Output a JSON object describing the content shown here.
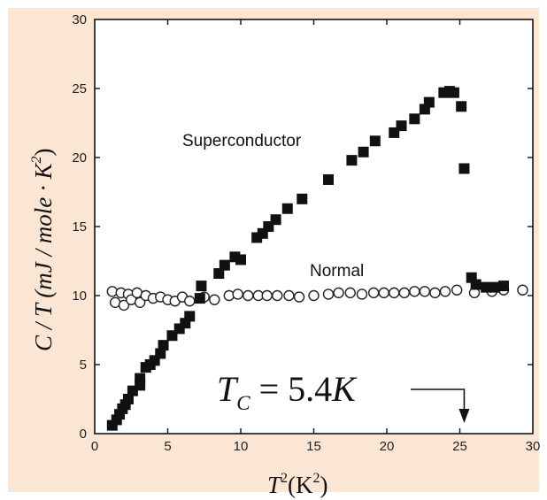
{
  "chart_data": {
    "type": "scatter",
    "title": "",
    "xlabel": {
      "base": "T",
      "exp": "2",
      "unit_open": "(K",
      "unit_exp": "2",
      "unit_close": ")"
    },
    "ylabel": {
      "text": "C / T  (mJ / mole · K",
      "exp": "2",
      "close": ")"
    },
    "xlim": [
      0,
      30
    ],
    "ylim": [
      0,
      30
    ],
    "xticks": [
      "0",
      "5",
      "10",
      "15",
      "20",
      "25",
      "30"
    ],
    "yticks": [
      "0",
      "5",
      "10",
      "15",
      "20",
      "25",
      "30"
    ],
    "grid": false,
    "colors": {
      "panel": "#fbe6d3",
      "axes": "#111111",
      "superconductor": "#111111",
      "normal_fill": "#ffffff",
      "normal_stroke": "#222222"
    },
    "series": [
      {
        "name": "Superconductor",
        "marker": "filled-square",
        "points": [
          [
            1.2,
            0.6
          ],
          [
            1.5,
            1.0
          ],
          [
            1.7,
            1.4
          ],
          [
            1.9,
            1.8
          ],
          [
            2.1,
            2.1
          ],
          [
            2.3,
            2.5
          ],
          [
            2.6,
            3.1
          ],
          [
            3.1,
            3.5
          ],
          [
            3.1,
            4.0
          ],
          [
            3.5,
            4.8
          ],
          [
            3.8,
            5.0
          ],
          [
            4.1,
            5.3
          ],
          [
            4.5,
            5.8
          ],
          [
            4.7,
            6.4
          ],
          [
            5.3,
            7.1
          ],
          [
            5.8,
            7.6
          ],
          [
            6.2,
            8.0
          ],
          [
            6.5,
            8.5
          ],
          [
            7.2,
            9.8
          ],
          [
            7.3,
            10.7
          ],
          [
            8.5,
            11.6
          ],
          [
            8.9,
            12.2
          ],
          [
            9.6,
            12.8
          ],
          [
            10.0,
            12.6
          ],
          [
            11.1,
            14.2
          ],
          [
            11.5,
            14.5
          ],
          [
            11.9,
            15.0
          ],
          [
            12.4,
            15.5
          ],
          [
            13.2,
            16.3
          ],
          [
            14.2,
            17.0
          ],
          [
            16.0,
            18.4
          ],
          [
            17.6,
            19.8
          ],
          [
            18.4,
            20.4
          ],
          [
            19.2,
            21.2
          ],
          [
            20.5,
            21.8
          ],
          [
            21.0,
            22.3
          ],
          [
            21.9,
            22.8
          ],
          [
            22.6,
            23.5
          ],
          [
            22.9,
            24.0
          ],
          [
            23.9,
            24.7
          ],
          [
            24.3,
            24.8
          ],
          [
            24.6,
            24.7
          ],
          [
            25.1,
            23.7
          ],
          [
            25.3,
            19.2
          ],
          [
            25.8,
            11.3
          ],
          [
            26.1,
            10.8
          ],
          [
            26.8,
            10.6
          ],
          [
            27.4,
            10.6
          ],
          [
            28.0,
            10.7
          ]
        ]
      },
      {
        "name": "Normal",
        "marker": "open-circle",
        "points": [
          [
            1.2,
            10.3
          ],
          [
            1.4,
            9.5
          ],
          [
            1.8,
            10.2
          ],
          [
            2.0,
            9.3
          ],
          [
            2.3,
            10.1
          ],
          [
            2.5,
            9.7
          ],
          [
            2.9,
            10.2
          ],
          [
            3.1,
            9.5
          ],
          [
            3.5,
            10.0
          ],
          [
            4.0,
            9.8
          ],
          [
            4.5,
            9.9
          ],
          [
            5.0,
            9.7
          ],
          [
            5.5,
            9.6
          ],
          [
            6.0,
            9.9
          ],
          [
            6.5,
            9.6
          ],
          [
            7.5,
            9.9
          ],
          [
            8.2,
            9.7
          ],
          [
            9.2,
            10.0
          ],
          [
            9.8,
            10.1
          ],
          [
            10.5,
            10.0
          ],
          [
            11.2,
            10.0
          ],
          [
            11.8,
            10.0
          ],
          [
            12.5,
            10.0
          ],
          [
            13.3,
            10.0
          ],
          [
            14.0,
            9.9
          ],
          [
            15.0,
            10.0
          ],
          [
            16.0,
            10.1
          ],
          [
            16.7,
            10.2
          ],
          [
            17.5,
            10.2
          ],
          [
            18.3,
            10.1
          ],
          [
            19.1,
            10.2
          ],
          [
            19.8,
            10.2
          ],
          [
            20.5,
            10.2
          ],
          [
            21.2,
            10.2
          ],
          [
            21.9,
            10.3
          ],
          [
            22.6,
            10.3
          ],
          [
            23.3,
            10.2
          ],
          [
            24.0,
            10.3
          ],
          [
            24.8,
            10.4
          ],
          [
            26.0,
            10.2
          ],
          [
            27.2,
            10.3
          ],
          [
            28.0,
            10.4
          ],
          [
            29.3,
            10.4
          ]
        ]
      }
    ],
    "annotations": {
      "superconductor_label": "Superconductor",
      "normal_label": "Normal",
      "tc": {
        "base": "T",
        "sub": "C",
        "eq": " = 5.4",
        "unit": "K",
        "arrow_x": 25.3
      }
    }
  }
}
